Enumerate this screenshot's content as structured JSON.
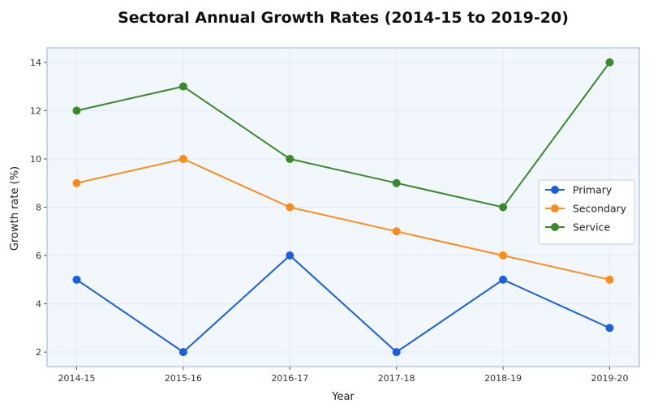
{
  "chart_data": {
    "type": "line",
    "title": "Sectoral Annual Growth Rates (2014-15 to 2019-20)",
    "xlabel": "Year",
    "ylabel": "Growth rate (%)",
    "categories": [
      "2014-15",
      "2015-16",
      "2016-17",
      "2017-18",
      "2018-19",
      "2019-20"
    ],
    "ylim": [
      1.4,
      14.6
    ],
    "yticks": [
      2,
      4,
      6,
      8,
      10,
      12,
      14
    ],
    "grid": true,
    "legend_position": "right",
    "series": [
      {
        "name": "Primary",
        "color": "#1a5fe0",
        "values": [
          5,
          2,
          6,
          2,
          5,
          3
        ]
      },
      {
        "name": "Secondary",
        "color": "#ff8c1a",
        "values": [
          9,
          10,
          8,
          7,
          6,
          5
        ]
      },
      {
        "name": "Service",
        "color": "#3a8a2a",
        "values": [
          12,
          13,
          10,
          9,
          8,
          14
        ]
      }
    ]
  }
}
